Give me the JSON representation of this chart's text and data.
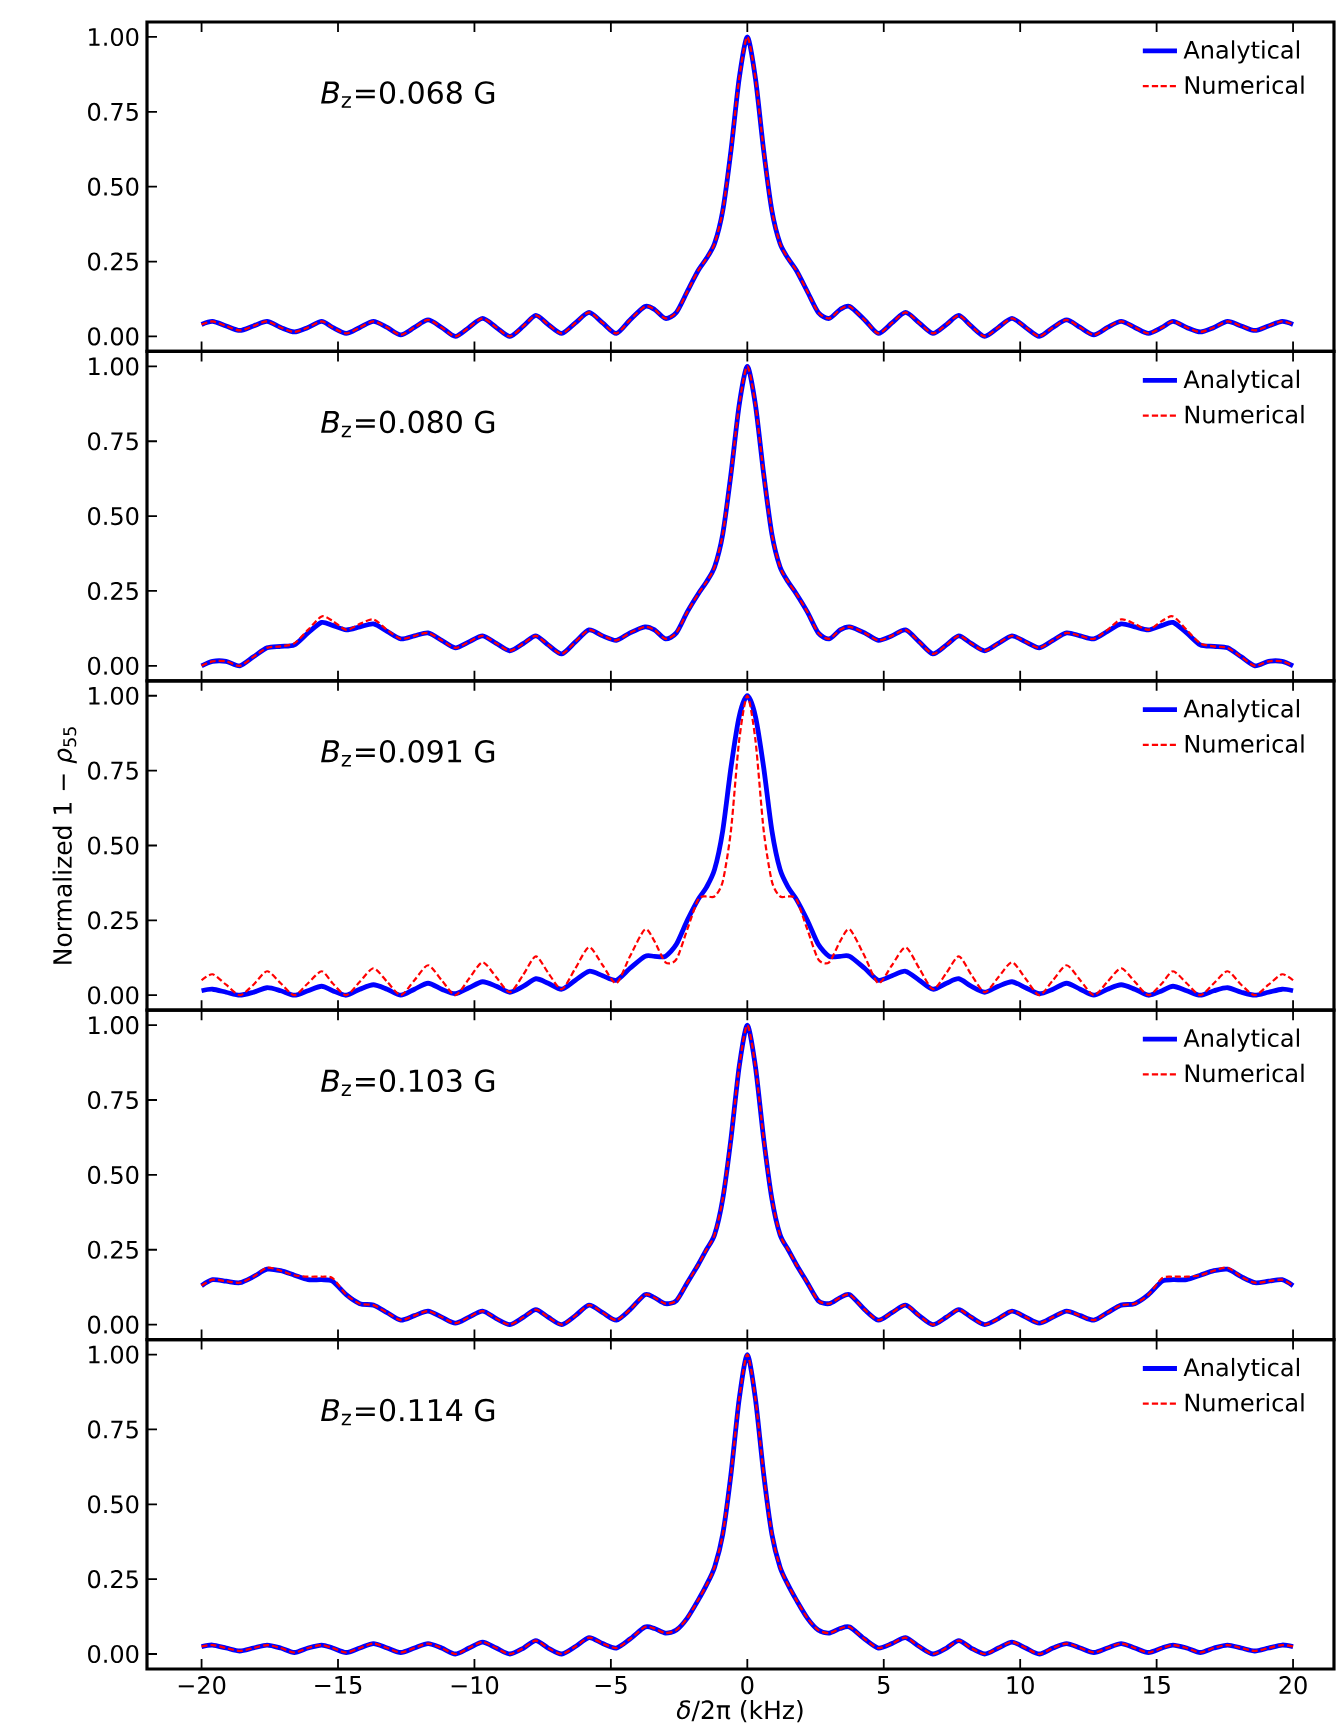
{
  "chart_data": [
    {
      "type": "line",
      "legend": "top right",
      "marker": "none",
      "tick_labels": "y",
      "annotations": [
        "*B*$_{z}$=0.068 G"
      ],
      "xlim": [
        -22,
        21.5
      ],
      "ylim": [
        -0.05,
        1.05
      ],
      "xticks": [
        {
          "value": -20,
          "label": null
        },
        {
          "value": -15,
          "label": null
        },
        {
          "value": -10,
          "label": null
        },
        {
          "value": -5,
          "label": null
        },
        {
          "value": 0,
          "label": null
        },
        {
          "value": 5,
          "label": null
        },
        {
          "value": 10,
          "label": null
        },
        {
          "value": 15,
          "label": null
        },
        {
          "value": 20,
          "label": null
        }
      ],
      "yticks": [
        {
          "value": 0,
          "label": "0.00"
        },
        {
          "value": 0.25,
          "label": "0.25"
        },
        {
          "value": 0.5,
          "label": "0.50"
        },
        {
          "value": 0.75,
          "label": "0.75"
        },
        {
          "value": 1,
          "label": "1.00"
        }
      ],
      "x": [
        -20,
        -19.6,
        -19.1,
        -18.6,
        -18.1,
        -17.6,
        -17.1,
        -16.6,
        -16.1,
        -15.6,
        -15.2,
        -14.7,
        -14.2,
        -13.7,
        -13.2,
        -12.7,
        -12.2,
        -11.7,
        -11.2,
        -10.7,
        -10.2,
        -9.7,
        -9.2,
        -8.7,
        -8.2,
        -7.75,
        -7.3,
        -6.8,
        -6.3,
        -5.8,
        -5.3,
        -4.8,
        -4.3,
        -3.75,
        -3.4,
        -3.0,
        -2.6,
        -2.2,
        -1.8,
        -1.5,
        -1.2,
        -0.9,
        -0.6,
        -0.3,
        0,
        0.3,
        0.6,
        0.9,
        1.2,
        1.5,
        1.8,
        2.2,
        2.6,
        3.0,
        3.4,
        3.75,
        4.3,
        4.8,
        5.3,
        5.8,
        6.3,
        6.8,
        7.3,
        7.75,
        8.2,
        8.7,
        9.2,
        9.7,
        10.2,
        10.7,
        11.2,
        11.7,
        12.2,
        12.7,
        13.2,
        13.7,
        14.2,
        14.7,
        15.2,
        15.6,
        16.1,
        16.6,
        17.1,
        17.6,
        18.1,
        18.6,
        19.1,
        19.6,
        20
      ],
      "series": [
        {
          "name": "Analytical",
          "color": "#0000ff",
          "line_style": "solid",
          "values": [
            0.04,
            0.05,
            0.035,
            0.02,
            0.035,
            0.05,
            0.03,
            0.015,
            0.03,
            0.05,
            0.03,
            0.01,
            0.03,
            0.05,
            0.03,
            0.005,
            0.03,
            0.055,
            0.03,
            0.0,
            0.03,
            0.06,
            0.03,
            0.0,
            0.035,
            0.07,
            0.04,
            0.01,
            0.045,
            0.08,
            0.045,
            0.01,
            0.055,
            0.1,
            0.09,
            0.06,
            0.08,
            0.15,
            0.22,
            0.26,
            0.31,
            0.42,
            0.62,
            0.86,
            1.0,
            0.86,
            0.62,
            0.42,
            0.31,
            0.26,
            0.22,
            0.15,
            0.08,
            0.06,
            0.09,
            0.1,
            0.055,
            0.01,
            0.045,
            0.08,
            0.045,
            0.01,
            0.04,
            0.07,
            0.035,
            0.0,
            0.03,
            0.06,
            0.03,
            0.0,
            0.03,
            0.055,
            0.03,
            0.005,
            0.03,
            0.05,
            0.03,
            0.01,
            0.03,
            0.05,
            0.03,
            0.015,
            0.03,
            0.05,
            0.035,
            0.02,
            0.035,
            0.05,
            0.04
          ]
        },
        {
          "name": "Numerical",
          "color": "#ff0000",
          "line_style": "dashed",
          "values": [
            0.04,
            0.05,
            0.035,
            0.02,
            0.035,
            0.05,
            0.03,
            0.015,
            0.03,
            0.05,
            0.03,
            0.01,
            0.03,
            0.05,
            0.03,
            0.005,
            0.03,
            0.055,
            0.03,
            0.0,
            0.03,
            0.06,
            0.03,
            0.0,
            0.035,
            0.07,
            0.04,
            0.01,
            0.045,
            0.08,
            0.045,
            0.01,
            0.055,
            0.1,
            0.09,
            0.06,
            0.08,
            0.15,
            0.22,
            0.26,
            0.31,
            0.42,
            0.62,
            0.86,
            1.0,
            0.86,
            0.62,
            0.42,
            0.31,
            0.26,
            0.22,
            0.15,
            0.08,
            0.06,
            0.09,
            0.1,
            0.055,
            0.01,
            0.045,
            0.08,
            0.045,
            0.01,
            0.04,
            0.07,
            0.035,
            0.0,
            0.03,
            0.06,
            0.03,
            0.0,
            0.03,
            0.055,
            0.03,
            0.005,
            0.03,
            0.05,
            0.03,
            0.01,
            0.03,
            0.05,
            0.03,
            0.015,
            0.03,
            0.05,
            0.035,
            0.02,
            0.035,
            0.05,
            0.04
          ]
        }
      ]
    },
    {
      "type": "line",
      "legend": "top right",
      "marker": "none",
      "tick_labels": "y",
      "annotations": [
        "*B*$_{z}$=0.080 G"
      ],
      "xlim": [
        -22,
        21.5
      ],
      "ylim": [
        -0.05,
        1.05
      ],
      "xticks": [
        {
          "value": -20,
          "label": null
        },
        {
          "value": -15,
          "label": null
        },
        {
          "value": -10,
          "label": null
        },
        {
          "value": -5,
          "label": null
        },
        {
          "value": 0,
          "label": null
        },
        {
          "value": 5,
          "label": null
        },
        {
          "value": 10,
          "label": null
        },
        {
          "value": 15,
          "label": null
        },
        {
          "value": 20,
          "label": null
        }
      ],
      "yticks": [
        {
          "value": 0,
          "label": "0.00"
        },
        {
          "value": 0.25,
          "label": "0.25"
        },
        {
          "value": 0.5,
          "label": "0.50"
        },
        {
          "value": 0.75,
          "label": "0.75"
        },
        {
          "value": 1,
          "label": "1.00"
        }
      ],
      "x": [
        -20,
        -19.6,
        -19.1,
        -18.6,
        -18.1,
        -17.6,
        -17.1,
        -16.6,
        -16.1,
        -15.6,
        -15.2,
        -14.7,
        -14.2,
        -13.7,
        -13.2,
        -12.7,
        -12.2,
        -11.7,
        -11.2,
        -10.7,
        -10.2,
        -9.7,
        -9.2,
        -8.7,
        -8.2,
        -7.75,
        -7.3,
        -6.8,
        -6.3,
        -5.8,
        -5.3,
        -4.8,
        -4.3,
        -3.75,
        -3.4,
        -3.0,
        -2.6,
        -2.2,
        -1.8,
        -1.5,
        -1.2,
        -0.9,
        -0.6,
        -0.3,
        0,
        0.3,
        0.6,
        0.9,
        1.2,
        1.5,
        1.8,
        2.2,
        2.6,
        3.0,
        3.4,
        3.75,
        4.3,
        4.8,
        5.3,
        5.8,
        6.3,
        6.8,
        7.3,
        7.75,
        8.2,
        8.7,
        9.2,
        9.7,
        10.2,
        10.7,
        11.2,
        11.7,
        12.2,
        12.7,
        13.2,
        13.7,
        14.2,
        14.7,
        15.2,
        15.6,
        16.1,
        16.6,
        17.1,
        17.6,
        18.1,
        18.6,
        19.1,
        19.6,
        20
      ],
      "series": [
        {
          "name": "Analytical",
          "color": "#0000ff",
          "line_style": "solid",
          "values": [
            0.0,
            0.015,
            0.015,
            0.0,
            0.03,
            0.06,
            0.065,
            0.07,
            0.11,
            0.145,
            0.135,
            0.12,
            0.13,
            0.14,
            0.115,
            0.09,
            0.1,
            0.11,
            0.085,
            0.06,
            0.08,
            0.1,
            0.075,
            0.05,
            0.075,
            0.1,
            0.07,
            0.04,
            0.08,
            0.12,
            0.1,
            0.085,
            0.11,
            0.13,
            0.12,
            0.09,
            0.11,
            0.18,
            0.24,
            0.28,
            0.33,
            0.44,
            0.64,
            0.87,
            1.0,
            0.87,
            0.64,
            0.44,
            0.33,
            0.28,
            0.24,
            0.18,
            0.11,
            0.09,
            0.12,
            0.13,
            0.11,
            0.085,
            0.1,
            0.12,
            0.08,
            0.04,
            0.07,
            0.1,
            0.075,
            0.05,
            0.075,
            0.1,
            0.08,
            0.06,
            0.085,
            0.11,
            0.1,
            0.09,
            0.115,
            0.14,
            0.13,
            0.12,
            0.135,
            0.145,
            0.11,
            0.07,
            0.065,
            0.06,
            0.03,
            0.0,
            0.015,
            0.015,
            0.0
          ]
        },
        {
          "name": "Numerical",
          "color": "#ff0000",
          "line_style": "dashed",
          "values": [
            0.0,
            0.015,
            0.015,
            0.0,
            0.03,
            0.06,
            0.065,
            0.075,
            0.12,
            0.165,
            0.15,
            0.12,
            0.14,
            0.155,
            0.12,
            0.09,
            0.1,
            0.11,
            0.085,
            0.06,
            0.08,
            0.1,
            0.075,
            0.05,
            0.075,
            0.1,
            0.07,
            0.04,
            0.08,
            0.12,
            0.1,
            0.085,
            0.11,
            0.13,
            0.12,
            0.09,
            0.11,
            0.18,
            0.24,
            0.28,
            0.33,
            0.44,
            0.64,
            0.87,
            1.0,
            0.87,
            0.64,
            0.44,
            0.33,
            0.28,
            0.24,
            0.18,
            0.11,
            0.09,
            0.12,
            0.13,
            0.11,
            0.085,
            0.1,
            0.12,
            0.08,
            0.04,
            0.07,
            0.1,
            0.075,
            0.05,
            0.075,
            0.1,
            0.08,
            0.06,
            0.085,
            0.11,
            0.1,
            0.09,
            0.12,
            0.155,
            0.14,
            0.12,
            0.15,
            0.165,
            0.12,
            0.075,
            0.065,
            0.06,
            0.03,
            0.0,
            0.015,
            0.015,
            0.0
          ]
        }
      ]
    },
    {
      "type": "line",
      "legend": "top right",
      "marker": "none",
      "tick_labels": "y",
      "ylabel": "Normalized 1 − *ρ*$_{55}$",
      "annotations": [
        "*B*$_{z}$=0.091 G"
      ],
      "xlim": [
        -22,
        21.5
      ],
      "ylim": [
        -0.05,
        1.05
      ],
      "xticks": [
        {
          "value": -20,
          "label": null
        },
        {
          "value": -15,
          "label": null
        },
        {
          "value": -10,
          "label": null
        },
        {
          "value": -5,
          "label": null
        },
        {
          "value": 0,
          "label": null
        },
        {
          "value": 5,
          "label": null
        },
        {
          "value": 10,
          "label": null
        },
        {
          "value": 15,
          "label": null
        },
        {
          "value": 20,
          "label": null
        }
      ],
      "yticks": [
        {
          "value": 0,
          "label": "0.00"
        },
        {
          "value": 0.25,
          "label": "0.25"
        },
        {
          "value": 0.5,
          "label": "0.50"
        },
        {
          "value": 0.75,
          "label": "0.75"
        },
        {
          "value": 1,
          "label": "1.00"
        }
      ],
      "x": [
        -20,
        -19.6,
        -19.1,
        -18.6,
        -18.1,
        -17.6,
        -17.1,
        -16.6,
        -16.1,
        -15.6,
        -15.2,
        -14.7,
        -14.2,
        -13.7,
        -13.2,
        -12.7,
        -12.2,
        -11.7,
        -11.2,
        -10.7,
        -10.2,
        -9.7,
        -9.2,
        -8.7,
        -8.2,
        -7.75,
        -7.3,
        -6.8,
        -6.3,
        -5.8,
        -5.3,
        -4.8,
        -4.3,
        -3.75,
        -3.4,
        -3.0,
        -2.6,
        -2.2,
        -1.8,
        -1.5,
        -1.2,
        -0.9,
        -0.6,
        -0.3,
        0,
        0.3,
        0.6,
        0.9,
        1.2,
        1.5,
        1.8,
        2.2,
        2.6,
        3.0,
        3.4,
        3.75,
        4.3,
        4.8,
        5.3,
        5.8,
        6.3,
        6.8,
        7.3,
        7.75,
        8.2,
        8.7,
        9.2,
        9.7,
        10.2,
        10.7,
        11.2,
        11.7,
        12.2,
        12.7,
        13.2,
        13.7,
        14.2,
        14.7,
        15.2,
        15.6,
        16.1,
        16.6,
        17.1,
        17.6,
        18.1,
        18.6,
        19.1,
        19.6,
        20
      ],
      "series": [
        {
          "name": "Analytical",
          "color": "#0000ff",
          "line_style": "solid",
          "values": [
            0.015,
            0.02,
            0.01,
            0.0,
            0.01,
            0.025,
            0.015,
            0.0,
            0.015,
            0.03,
            0.015,
            0.0,
            0.02,
            0.035,
            0.02,
            0.0,
            0.02,
            0.04,
            0.02,
            0.005,
            0.025,
            0.045,
            0.03,
            0.01,
            0.03,
            0.055,
            0.04,
            0.02,
            0.05,
            0.08,
            0.065,
            0.05,
            0.09,
            0.13,
            0.13,
            0.13,
            0.17,
            0.25,
            0.32,
            0.36,
            0.42,
            0.55,
            0.76,
            0.93,
            1.0,
            0.93,
            0.76,
            0.55,
            0.42,
            0.36,
            0.32,
            0.25,
            0.17,
            0.13,
            0.13,
            0.13,
            0.09,
            0.05,
            0.065,
            0.08,
            0.05,
            0.02,
            0.04,
            0.055,
            0.03,
            0.01,
            0.03,
            0.045,
            0.025,
            0.005,
            0.02,
            0.04,
            0.02,
            0.0,
            0.02,
            0.035,
            0.02,
            0.0,
            0.015,
            0.03,
            0.015,
            0.0,
            0.015,
            0.025,
            0.01,
            0.0,
            0.01,
            0.02,
            0.015
          ]
        },
        {
          "name": "Numerical",
          "color": "#ff0000",
          "line_style": "dashed",
          "values": [
            0.05,
            0.07,
            0.035,
            0.0,
            0.035,
            0.08,
            0.04,
            0.0,
            0.04,
            0.08,
            0.04,
            0.0,
            0.045,
            0.09,
            0.045,
            0.0,
            0.05,
            0.1,
            0.05,
            0.0,
            0.055,
            0.11,
            0.06,
            0.01,
            0.07,
            0.13,
            0.075,
            0.02,
            0.09,
            0.16,
            0.1,
            0.04,
            0.13,
            0.22,
            0.18,
            0.11,
            0.12,
            0.22,
            0.32,
            0.33,
            0.33,
            0.38,
            0.55,
            0.85,
            1.0,
            0.85,
            0.55,
            0.38,
            0.33,
            0.33,
            0.32,
            0.22,
            0.12,
            0.11,
            0.18,
            0.22,
            0.13,
            0.04,
            0.1,
            0.16,
            0.09,
            0.02,
            0.075,
            0.13,
            0.07,
            0.01,
            0.06,
            0.11,
            0.055,
            0.0,
            0.05,
            0.1,
            0.05,
            0.0,
            0.045,
            0.09,
            0.045,
            0.0,
            0.04,
            0.08,
            0.04,
            0.0,
            0.04,
            0.08,
            0.035,
            0.0,
            0.035,
            0.07,
            0.05
          ]
        }
      ]
    },
    {
      "type": "line",
      "legend": "top right",
      "marker": "none",
      "tick_labels": "y",
      "annotations": [
        "*B*$_{z}$=0.103 G"
      ],
      "xlim": [
        -22,
        21.5
      ],
      "ylim": [
        -0.05,
        1.05
      ],
      "xticks": [
        {
          "value": -20,
          "label": null
        },
        {
          "value": -15,
          "label": null
        },
        {
          "value": -10,
          "label": null
        },
        {
          "value": -5,
          "label": null
        },
        {
          "value": 0,
          "label": null
        },
        {
          "value": 5,
          "label": null
        },
        {
          "value": 10,
          "label": null
        },
        {
          "value": 15,
          "label": null
        },
        {
          "value": 20,
          "label": null
        }
      ],
      "yticks": [
        {
          "value": 0,
          "label": "0.00"
        },
        {
          "value": 0.25,
          "label": "0.25"
        },
        {
          "value": 0.5,
          "label": "0.50"
        },
        {
          "value": 0.75,
          "label": "0.75"
        },
        {
          "value": 1,
          "label": "1.00"
        }
      ],
      "x": [
        -20,
        -19.6,
        -19.1,
        -18.6,
        -18.1,
        -17.6,
        -17.1,
        -16.6,
        -16.1,
        -15.6,
        -15.2,
        -14.7,
        -14.2,
        -13.7,
        -13.2,
        -12.7,
        -12.2,
        -11.7,
        -11.2,
        -10.7,
        -10.2,
        -9.7,
        -9.2,
        -8.7,
        -8.2,
        -7.75,
        -7.3,
        -6.8,
        -6.3,
        -5.8,
        -5.3,
        -4.8,
        -4.3,
        -3.75,
        -3.4,
        -3.0,
        -2.6,
        -2.2,
        -1.8,
        -1.5,
        -1.2,
        -0.9,
        -0.6,
        -0.3,
        0,
        0.3,
        0.6,
        0.9,
        1.2,
        1.5,
        1.8,
        2.2,
        2.6,
        3.0,
        3.4,
        3.75,
        4.3,
        4.8,
        5.3,
        5.8,
        6.3,
        6.8,
        7.3,
        7.75,
        8.2,
        8.7,
        9.2,
        9.7,
        10.2,
        10.7,
        11.2,
        11.7,
        12.2,
        12.7,
        13.2,
        13.7,
        14.2,
        14.7,
        15.2,
        15.6,
        16.1,
        16.6,
        17.1,
        17.6,
        18.1,
        18.6,
        19.1,
        19.6,
        20
      ],
      "series": [
        {
          "name": "Analytical",
          "color": "#0000ff",
          "line_style": "solid",
          "values": [
            0.13,
            0.15,
            0.145,
            0.14,
            0.16,
            0.185,
            0.18,
            0.165,
            0.15,
            0.15,
            0.145,
            0.1,
            0.07,
            0.065,
            0.04,
            0.015,
            0.03,
            0.045,
            0.025,
            0.005,
            0.025,
            0.045,
            0.02,
            0.0,
            0.025,
            0.05,
            0.025,
            0.0,
            0.03,
            0.065,
            0.04,
            0.015,
            0.05,
            0.1,
            0.09,
            0.07,
            0.08,
            0.14,
            0.2,
            0.25,
            0.3,
            0.42,
            0.62,
            0.86,
            1.0,
            0.86,
            0.62,
            0.42,
            0.3,
            0.25,
            0.2,
            0.14,
            0.08,
            0.07,
            0.09,
            0.1,
            0.05,
            0.015,
            0.04,
            0.065,
            0.03,
            0.0,
            0.025,
            0.05,
            0.025,
            0.0,
            0.02,
            0.045,
            0.025,
            0.005,
            0.025,
            0.045,
            0.03,
            0.015,
            0.04,
            0.065,
            0.07,
            0.1,
            0.145,
            0.15,
            0.15,
            0.165,
            0.18,
            0.185,
            0.16,
            0.14,
            0.145,
            0.15,
            0.13
          ]
        },
        {
          "name": "Numerical",
          "color": "#ff0000",
          "line_style": "dashed",
          "values": [
            0.13,
            0.15,
            0.145,
            0.14,
            0.16,
            0.19,
            0.18,
            0.165,
            0.16,
            0.16,
            0.155,
            0.1,
            0.07,
            0.065,
            0.04,
            0.015,
            0.03,
            0.045,
            0.025,
            0.005,
            0.025,
            0.045,
            0.02,
            0.0,
            0.025,
            0.05,
            0.025,
            0.0,
            0.03,
            0.065,
            0.04,
            0.015,
            0.05,
            0.1,
            0.09,
            0.07,
            0.08,
            0.14,
            0.2,
            0.25,
            0.3,
            0.42,
            0.62,
            0.86,
            1.0,
            0.86,
            0.62,
            0.42,
            0.3,
            0.25,
            0.2,
            0.14,
            0.08,
            0.07,
            0.09,
            0.1,
            0.05,
            0.015,
            0.04,
            0.065,
            0.03,
            0.0,
            0.025,
            0.05,
            0.025,
            0.0,
            0.02,
            0.045,
            0.025,
            0.005,
            0.025,
            0.045,
            0.03,
            0.015,
            0.04,
            0.065,
            0.07,
            0.1,
            0.155,
            0.16,
            0.16,
            0.165,
            0.18,
            0.19,
            0.16,
            0.14,
            0.145,
            0.15,
            0.13
          ]
        }
      ]
    },
    {
      "type": "line",
      "legend": "top right",
      "marker": "none",
      "xlabel": "*δ*/2π (kHz)",
      "annotations": [
        "*B*$_{z}$=0.114 G"
      ],
      "xlim": [
        -22,
        21.5
      ],
      "ylim": [
        -0.05,
        1.05
      ],
      "xticks": [
        {
          "value": -20,
          "label": "−20"
        },
        {
          "value": -15,
          "label": "−15"
        },
        {
          "value": -10,
          "label": "−10"
        },
        {
          "value": -5,
          "label": "−5"
        },
        0,
        5,
        10,
        15,
        20
      ],
      "yticks": [
        {
          "value": 0,
          "label": "0.00"
        },
        {
          "value": 0.25,
          "label": "0.25"
        },
        {
          "value": 0.5,
          "label": "0.50"
        },
        {
          "value": 0.75,
          "label": "0.75"
        },
        {
          "value": 1,
          "label": "1.00"
        }
      ],
      "x": [
        -20,
        -19.6,
        -19.1,
        -18.6,
        -18.1,
        -17.6,
        -17.1,
        -16.6,
        -16.1,
        -15.6,
        -15.2,
        -14.7,
        -14.2,
        -13.7,
        -13.2,
        -12.7,
        -12.2,
        -11.7,
        -11.2,
        -10.7,
        -10.2,
        -9.7,
        -9.2,
        -8.7,
        -8.2,
        -7.75,
        -7.3,
        -6.8,
        -6.3,
        -5.8,
        -5.3,
        -4.8,
        -4.3,
        -3.75,
        -3.4,
        -3.0,
        -2.6,
        -2.2,
        -1.8,
        -1.5,
        -1.2,
        -0.9,
        -0.6,
        -0.3,
        0,
        0.3,
        0.6,
        0.9,
        1.2,
        1.5,
        1.8,
        2.2,
        2.6,
        3.0,
        3.4,
        3.75,
        4.3,
        4.8,
        5.3,
        5.8,
        6.3,
        6.8,
        7.3,
        7.75,
        8.2,
        8.7,
        9.2,
        9.7,
        10.2,
        10.7,
        11.2,
        11.7,
        12.2,
        12.7,
        13.2,
        13.7,
        14.2,
        14.7,
        15.2,
        15.6,
        16.1,
        16.6,
        17.1,
        17.6,
        18.1,
        18.6,
        19.1,
        19.6,
        20
      ],
      "series": [
        {
          "name": "Analytical",
          "color": "#0000ff",
          "line_style": "solid",
          "values": [
            0.025,
            0.03,
            0.02,
            0.01,
            0.02,
            0.03,
            0.02,
            0.005,
            0.02,
            0.03,
            0.02,
            0.005,
            0.02,
            0.035,
            0.02,
            0.005,
            0.02,
            0.035,
            0.02,
            0.0,
            0.02,
            0.04,
            0.02,
            0.0,
            0.02,
            0.045,
            0.02,
            0.0,
            0.025,
            0.055,
            0.035,
            0.02,
            0.05,
            0.09,
            0.085,
            0.07,
            0.08,
            0.12,
            0.18,
            0.23,
            0.29,
            0.4,
            0.6,
            0.85,
            1.0,
            0.85,
            0.6,
            0.4,
            0.29,
            0.23,
            0.18,
            0.12,
            0.08,
            0.07,
            0.085,
            0.09,
            0.05,
            0.02,
            0.035,
            0.055,
            0.025,
            0.0,
            0.02,
            0.045,
            0.02,
            0.0,
            0.02,
            0.04,
            0.02,
            0.0,
            0.02,
            0.035,
            0.02,
            0.005,
            0.02,
            0.035,
            0.02,
            0.005,
            0.02,
            0.03,
            0.02,
            0.005,
            0.02,
            0.03,
            0.02,
            0.01,
            0.02,
            0.03,
            0.025
          ]
        },
        {
          "name": "Numerical",
          "color": "#ff0000",
          "line_style": "dashed",
          "values": [
            0.025,
            0.03,
            0.02,
            0.01,
            0.02,
            0.03,
            0.02,
            0.005,
            0.02,
            0.03,
            0.02,
            0.005,
            0.02,
            0.035,
            0.02,
            0.005,
            0.02,
            0.035,
            0.02,
            0.0,
            0.02,
            0.04,
            0.02,
            0.0,
            0.02,
            0.045,
            0.02,
            0.0,
            0.025,
            0.055,
            0.035,
            0.02,
            0.05,
            0.09,
            0.085,
            0.07,
            0.08,
            0.12,
            0.18,
            0.23,
            0.29,
            0.4,
            0.6,
            0.85,
            1.0,
            0.85,
            0.6,
            0.4,
            0.29,
            0.23,
            0.18,
            0.12,
            0.08,
            0.07,
            0.085,
            0.09,
            0.05,
            0.02,
            0.035,
            0.055,
            0.025,
            0.0,
            0.02,
            0.045,
            0.02,
            0.0,
            0.02,
            0.04,
            0.02,
            0.0,
            0.02,
            0.035,
            0.02,
            0.005,
            0.02,
            0.035,
            0.02,
            0.005,
            0.02,
            0.03,
            0.02,
            0.005,
            0.02,
            0.03,
            0.02,
            0.01,
            0.02,
            0.03,
            0.025
          ]
        }
      ]
    }
  ]
}
